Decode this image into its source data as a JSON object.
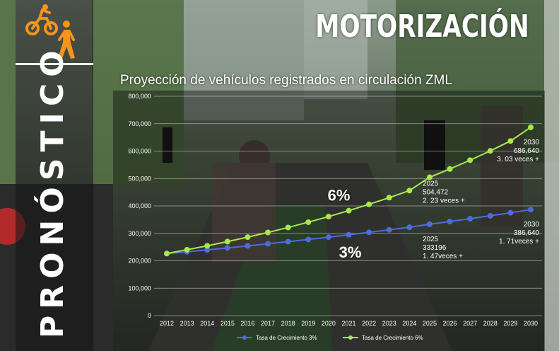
{
  "header": {
    "title": "MOTORIZACIÓN",
    "section": "PRONÓSTICO"
  },
  "icons": [
    "cyclist-icon",
    "pedestrian-icon"
  ],
  "colors": {
    "accent": "#f7941d",
    "series3": "#4b6cde",
    "series6": "#a8e84a"
  },
  "chart_data": {
    "type": "line",
    "title": "Proyección de vehículos registrados en circulación ZML",
    "xlabel": "",
    "ylabel": "",
    "x": [
      "2012",
      "2013",
      "2014",
      "2015",
      "2016",
      "2017",
      "2018",
      "2019",
      "2020",
      "2021",
      "2022",
      "2023",
      "2024",
      "2025",
      "2026",
      "2027",
      "2028",
      "2029",
      "2030"
    ],
    "yticks": [
      "0",
      "100,000",
      "200,000",
      "300,000",
      "400,000",
      "500,000",
      "600,000",
      "700,000",
      "800,000"
    ],
    "ylim": [
      0,
      800000
    ],
    "series": [
      {
        "name": "Tasa de Crecimiento 3%",
        "color": "#4b6cde",
        "values": [
          225946,
          232724,
          239706,
          246898,
          254305,
          261934,
          269792,
          277886,
          286222,
          294809,
          303653,
          312763,
          322146,
          333196,
          343192,
          353488,
          364092,
          375015,
          386640
        ]
      },
      {
        "name": "Tasa de Crecimiento 6%",
        "color": "#a8e84a",
        "values": [
          226610,
          240207,
          254619,
          269897,
          286090,
          303256,
          321451,
          340738,
          361182,
          382853,
          405825,
          430174,
          455985,
          504472,
          534740,
          566825,
          600834,
          636884,
          686640
        ]
      }
    ],
    "rate_labels": [
      "6%",
      "3%"
    ],
    "annotations": [
      {
        "series": 1,
        "year": "2025",
        "lines": [
          "2025",
          "504,472",
          "2. 23 veces +"
        ]
      },
      {
        "series": 1,
        "year": "2030",
        "lines": [
          "2030",
          "686,640",
          "3. 03 veces +"
        ]
      },
      {
        "series": 0,
        "year": "2025",
        "lines": [
          "2025",
          "333196",
          "1. 47veces +"
        ]
      },
      {
        "series": 0,
        "year": "2030",
        "lines": [
          "2030",
          "386,640",
          "1. 71veces +"
        ]
      }
    ]
  }
}
